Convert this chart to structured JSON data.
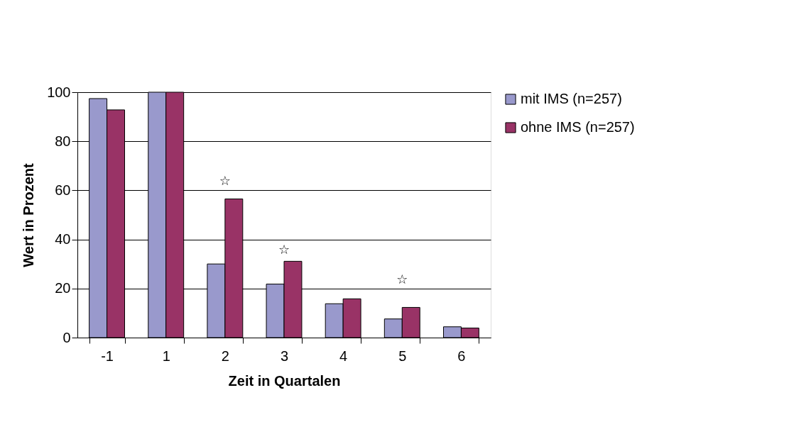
{
  "chart_data": {
    "type": "bar",
    "xlabel": "Zeit in Quartalen",
    "ylabel": "Wert in Prozent",
    "categories": [
      "-1",
      "1",
      "2",
      "3",
      "4",
      "5",
      "6"
    ],
    "series": [
      {
        "name": "mit IMS (n=257)",
        "color": "#9999cc",
        "values": [
          97.4,
          100,
          30,
          21.8,
          13.8,
          7.6,
          4.4
        ]
      },
      {
        "name": "ohne IMS (n=257)",
        "color": "#993366",
        "values": [
          92.8,
          100,
          56.5,
          31.1,
          15.8,
          12.3,
          3.9
        ]
      }
    ],
    "ylim": [
      0,
      100
    ],
    "yticks": [
      0,
      20,
      40,
      60,
      80,
      100
    ],
    "grid": "y",
    "legend": "right",
    "annotations": [
      "☆",
      "☆",
      "☆"
    ]
  }
}
